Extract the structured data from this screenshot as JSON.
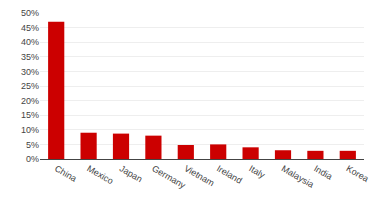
{
  "chart_data": {
    "type": "bar",
    "categories": [
      "China",
      "Mexico",
      "Japan",
      "Germany",
      "Vietnam",
      "Ireland",
      "Italy",
      "Malaysia",
      "India",
      "Korea"
    ],
    "values": [
      47,
      9.0,
      8.7,
      8.0,
      4.8,
      5.0,
      4.0,
      3.0,
      2.8,
      2.8
    ],
    "color": "#cc0000",
    "ylim": [
      0,
      50
    ],
    "yticks": [
      {
        "value": 0,
        "label": "0%"
      },
      {
        "value": 5,
        "label": "5%"
      },
      {
        "value": 10,
        "label": "10%"
      },
      {
        "value": 15,
        "label": "15%"
      },
      {
        "value": 20,
        "label": "20%"
      },
      {
        "value": 25,
        "label": "25%"
      },
      {
        "value": 30,
        "label": "30%"
      },
      {
        "value": 35,
        "label": "35%"
      },
      {
        "value": 40,
        "label": "40%"
      },
      {
        "value": 45,
        "label": "45%"
      },
      {
        "value": 50,
        "label": "50%"
      }
    ],
    "grid": true
  }
}
